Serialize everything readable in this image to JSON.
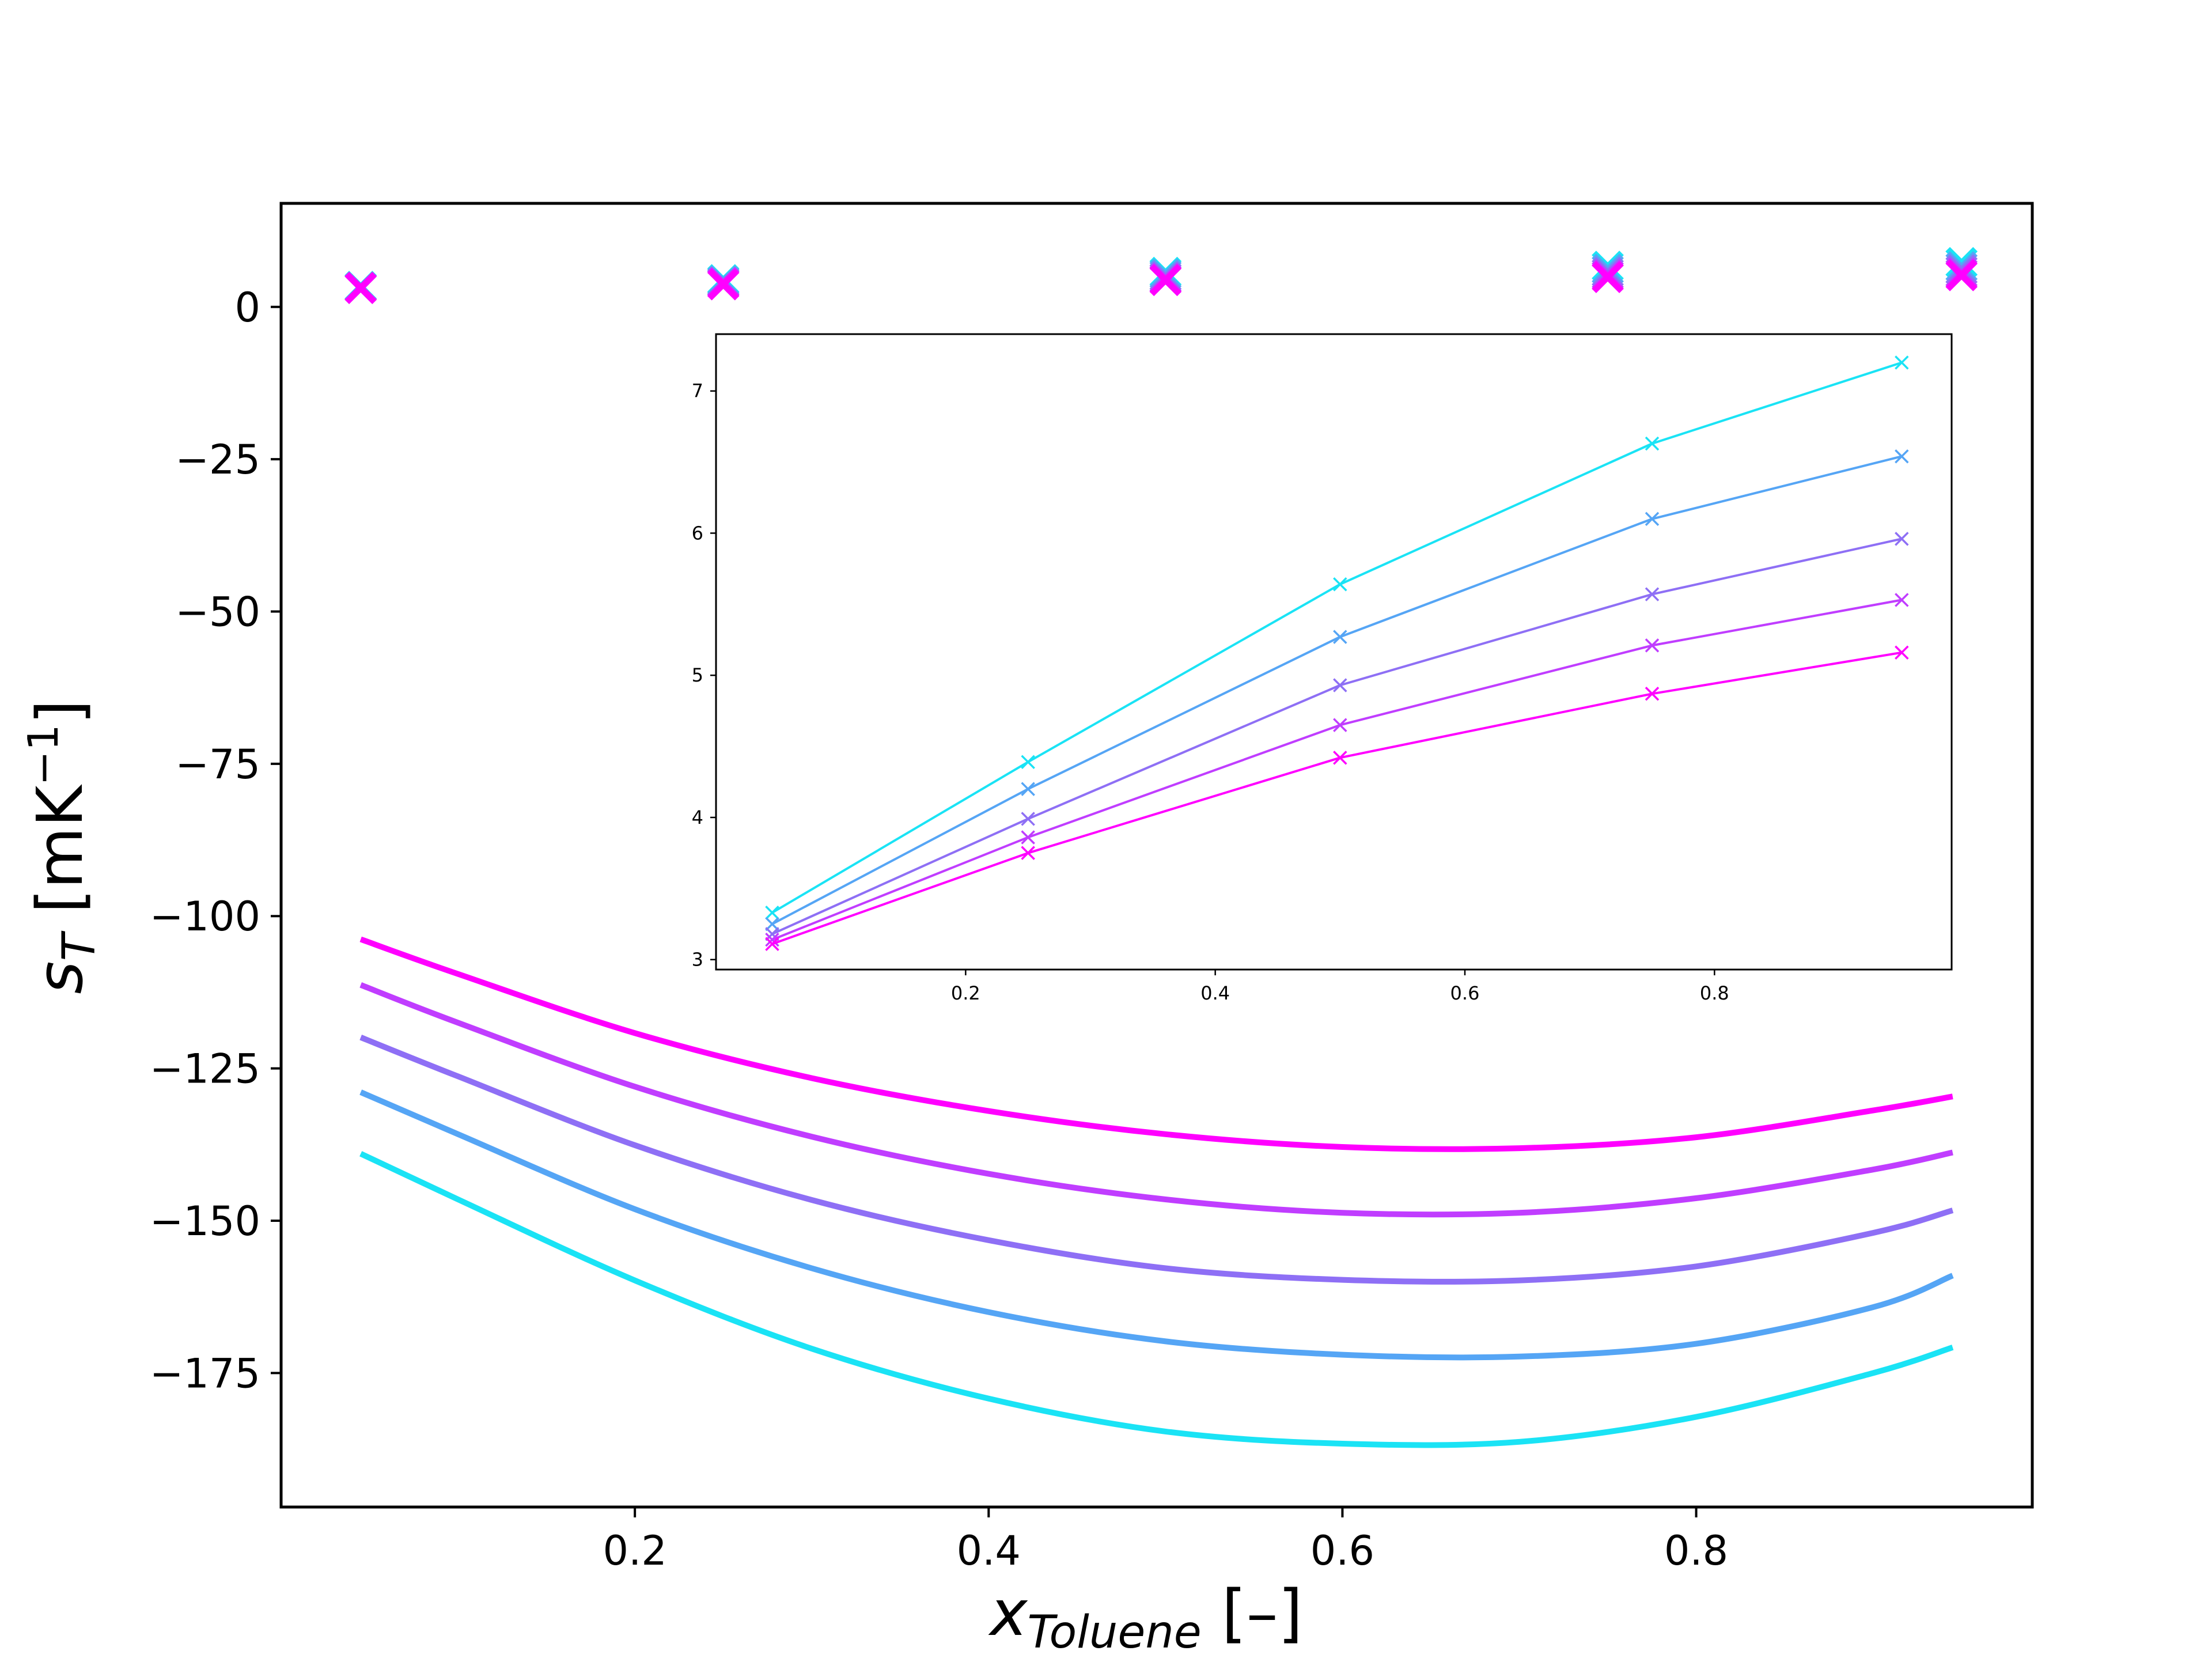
{
  "chart_data": [
    {
      "type": "line",
      "title": "",
      "xlabel": "x",
      "xlabel_sub": "Toluene",
      "xlabel_unit": "[–]",
      "ylabel": "s",
      "ylabel_sub": "T",
      "ylabel_unit_prefix": "[mK",
      "ylabel_unit_exp": "−1",
      "ylabel_unit_suffix": "]",
      "xlim": [
        0.0,
        0.99
      ],
      "ylim": [
        -197,
        17
      ],
      "xticks": [
        0.2,
        0.4,
        0.6,
        0.8
      ],
      "xtick_labels": [
        "0.2",
        "0.4",
        "0.6",
        "0.8"
      ],
      "yticks": [
        0,
        -25,
        -50,
        -75,
        -100,
        -125,
        -150,
        -175
      ],
      "ytick_labels": [
        "0",
        "−25",
        "−50",
        "−75",
        "−100",
        "−125",
        "−150",
        "−175"
      ],
      "grid": false,
      "legend": "none",
      "curve_series": [
        {
          "color": "#ff00ff",
          "x": [
            0.045,
            0.1,
            0.2,
            0.3,
            0.4,
            0.5,
            0.6,
            0.7,
            0.8,
            0.9,
            0.945
          ],
          "values": [
            -103.8,
            -109.5,
            -119.2,
            -126.6,
            -132.0,
            -135.8,
            -137.9,
            -138.1,
            -136.3,
            -131.9,
            -129.6
          ]
        },
        {
          "color": "#c03dff",
          "x": [
            0.045,
            0.1,
            0.2,
            0.3,
            0.4,
            0.5,
            0.6,
            0.7,
            0.8,
            0.9,
            0.945
          ],
          "values": [
            -111.3,
            -117.5,
            -128.0,
            -136.2,
            -142.3,
            -146.5,
            -148.7,
            -148.7,
            -146.3,
            -141.6,
            -138.8
          ]
        },
        {
          "color": "#8e6ff5",
          "x": [
            0.045,
            0.1,
            0.2,
            0.3,
            0.4,
            0.5,
            0.6,
            0.7,
            0.8,
            0.9,
            0.945
          ],
          "values": [
            -119.9,
            -126.3,
            -137.6,
            -146.6,
            -153.2,
            -157.8,
            -159.7,
            -159.8,
            -157.5,
            -152.0,
            -148.3
          ]
        },
        {
          "color": "#55a5f5",
          "x": [
            0.045,
            0.1,
            0.2,
            0.3,
            0.4,
            0.5,
            0.6,
            0.7,
            0.8,
            0.9,
            0.945
          ],
          "values": [
            -128.9,
            -135.8,
            -148.1,
            -157.8,
            -165.0,
            -169.8,
            -172.0,
            -172.3,
            -170.2,
            -164.2,
            -159.0
          ]
        },
        {
          "color": "#1ae3f5",
          "x": [
            0.045,
            0.1,
            0.2,
            0.3,
            0.4,
            0.5,
            0.6,
            0.7,
            0.8,
            0.9,
            0.945
          ],
          "values": [
            -139.0,
            -146.5,
            -159.8,
            -171.0,
            -179.2,
            -184.6,
            -186.6,
            -186.3,
            -182.2,
            -175.0,
            -170.8
          ]
        }
      ],
      "marker_series": [
        {
          "color": "#1ae3f5",
          "x": [
            0.045,
            0.25,
            0.5,
            0.75,
            0.95
          ],
          "values": [
            3.3,
            4.4,
            5.6,
            6.6,
            7.2
          ]
        },
        {
          "color": "#55a5f5",
          "x": [
            0.045,
            0.25,
            0.5,
            0.75,
            0.95
          ],
          "values": [
            3.2,
            4.2,
            5.3,
            6.1,
            6.5
          ]
        },
        {
          "color": "#8e6ff5",
          "x": [
            0.045,
            0.25,
            0.5,
            0.75,
            0.95
          ],
          "values": [
            3.2,
            4.0,
            4.9,
            5.6,
            6.0
          ]
        },
        {
          "color": "#c03dff",
          "x": [
            0.045,
            0.25,
            0.5,
            0.75,
            0.95
          ],
          "values": [
            3.1,
            3.9,
            4.6,
            5.2,
            5.5
          ]
        },
        {
          "color": "#ff00ff",
          "x": [
            0.045,
            0.25,
            0.5,
            0.75,
            0.95
          ],
          "values": [
            3.1,
            3.7,
            4.4,
            4.9,
            5.2
          ]
        }
      ]
    },
    {
      "type": "line",
      "title": "",
      "xlabel": "",
      "ylabel": "",
      "xlim": [
        0.0,
        0.99
      ],
      "ylim": [
        2.93,
        7.4
      ],
      "xticks": [
        0.2,
        0.4,
        0.6,
        0.8
      ],
      "xtick_labels": [
        "0.2",
        "0.4",
        "0.6",
        "0.8"
      ],
      "yticks": [
        3,
        4,
        5,
        6,
        7
      ],
      "ytick_labels": [
        "3",
        "4",
        "5",
        "6",
        "7"
      ],
      "grid": false,
      "legend": "none",
      "marker": "x",
      "series": [
        {
          "color": "#1ae3f5",
          "x": [
            0.045,
            0.25,
            0.5,
            0.75,
            0.95
          ],
          "values": [
            3.33,
            4.39,
            5.64,
            6.63,
            7.2
          ]
        },
        {
          "color": "#55a5f5",
          "x": [
            0.045,
            0.25,
            0.5,
            0.75,
            0.95
          ],
          "values": [
            3.25,
            4.2,
            5.27,
            6.1,
            6.54
          ]
        },
        {
          "color": "#8e6ff5",
          "x": [
            0.045,
            0.25,
            0.5,
            0.75,
            0.95
          ],
          "values": [
            3.18,
            3.99,
            4.93,
            5.57,
            5.96
          ]
        },
        {
          "color": "#c03dff",
          "x": [
            0.045,
            0.25,
            0.5,
            0.75,
            0.95
          ],
          "values": [
            3.14,
            3.86,
            4.65,
            5.21,
            5.53
          ]
        },
        {
          "color": "#ff00ff",
          "x": [
            0.045,
            0.25,
            0.5,
            0.75,
            0.95
          ],
          "values": [
            3.11,
            3.75,
            4.42,
            4.87,
            5.16
          ]
        }
      ]
    }
  ]
}
